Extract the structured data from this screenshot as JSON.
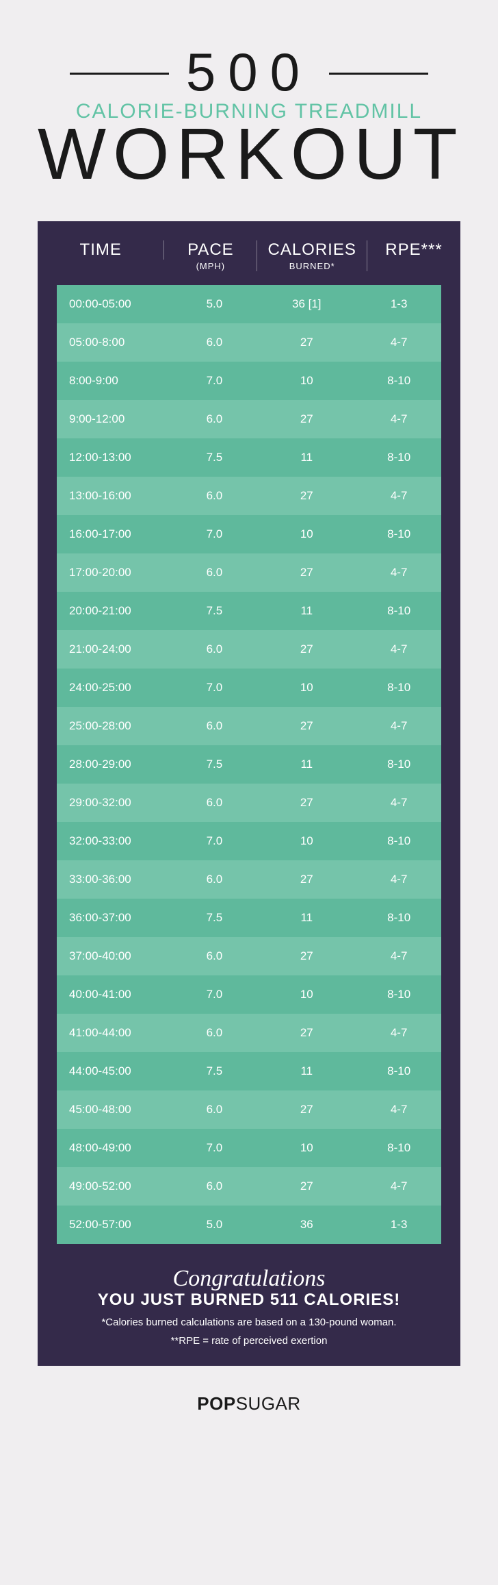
{
  "header": {
    "number": "500",
    "subtitle": "CALORIE-BURNING TREADMILL",
    "title": "WORKOUT"
  },
  "table": {
    "columns": [
      {
        "label": "TIME",
        "sub": ""
      },
      {
        "label": "PACE",
        "sub": "(MPH)"
      },
      {
        "label": "CALORIES",
        "sub": "BURNED*"
      },
      {
        "label": "RPE***",
        "sub": ""
      }
    ],
    "col_widths": [
      "30%",
      "22%",
      "26%",
      "22%"
    ],
    "row_colors": {
      "dark": "#5fb99c",
      "light": "#75c4aa"
    },
    "header_bg": "#342a4a",
    "rows": [
      {
        "time": "00:00-05:00",
        "pace": "5.0",
        "cal": "36 [1]",
        "rpe": "1-3"
      },
      {
        "time": "05:00-8:00",
        "pace": "6.0",
        "cal": "27",
        "rpe": "4-7"
      },
      {
        "time": "8:00-9:00",
        "pace": "7.0",
        "cal": "10",
        "rpe": "8-10"
      },
      {
        "time": "9:00-12:00",
        "pace": "6.0",
        "cal": "27",
        "rpe": "4-7"
      },
      {
        "time": "12:00-13:00",
        "pace": "7.5",
        "cal": "11",
        "rpe": "8-10"
      },
      {
        "time": "13:00-16:00",
        "pace": "6.0",
        "cal": "27",
        "rpe": "4-7"
      },
      {
        "time": "16:00-17:00",
        "pace": "7.0",
        "cal": "10",
        "rpe": "8-10"
      },
      {
        "time": "17:00-20:00",
        "pace": "6.0",
        "cal": "27",
        "rpe": "4-7"
      },
      {
        "time": "20:00-21:00",
        "pace": "7.5",
        "cal": "11",
        "rpe": "8-10"
      },
      {
        "time": "21:00-24:00",
        "pace": "6.0",
        "cal": "27",
        "rpe": "4-7"
      },
      {
        "time": "24:00-25:00",
        "pace": "7.0",
        "cal": "10",
        "rpe": "8-10"
      },
      {
        "time": "25:00-28:00",
        "pace": "6.0",
        "cal": "27",
        "rpe": "4-7"
      },
      {
        "time": "28:00-29:00",
        "pace": "7.5",
        "cal": "11",
        "rpe": "8-10"
      },
      {
        "time": "29:00-32:00",
        "pace": "6.0",
        "cal": "27",
        "rpe": "4-7"
      },
      {
        "time": "32:00-33:00",
        "pace": "7.0",
        "cal": "10",
        "rpe": "8-10"
      },
      {
        "time": "33:00-36:00",
        "pace": "6.0",
        "cal": "27",
        "rpe": "4-7"
      },
      {
        "time": "36:00-37:00",
        "pace": "7.5",
        "cal": "11",
        "rpe": "8-10"
      },
      {
        "time": "37:00-40:00",
        "pace": "6.0",
        "cal": "27",
        "rpe": "4-7"
      },
      {
        "time": "40:00-41:00",
        "pace": "7.0",
        "cal": "10",
        "rpe": "8-10"
      },
      {
        "time": "41:00-44:00",
        "pace": "6.0",
        "cal": "27",
        "rpe": "4-7"
      },
      {
        "time": "44:00-45:00",
        "pace": "7.5",
        "cal": "11",
        "rpe": "8-10"
      },
      {
        "time": "45:00-48:00",
        "pace": "6.0",
        "cal": "27",
        "rpe": "4-7"
      },
      {
        "time": "48:00-49:00",
        "pace": "7.0",
        "cal": "10",
        "rpe": "8-10"
      },
      {
        "time": "49:00-52:00",
        "pace": "6.0",
        "cal": "27",
        "rpe": "4-7"
      },
      {
        "time": "52:00-57:00",
        "pace": "5.0",
        "cal": "36",
        "rpe": "1-3"
      }
    ]
  },
  "footer": {
    "congrats": "Congratulations",
    "burned": "YOU JUST BURNED 511 CALORIES!",
    "note1": "*Calories burned calculations are based on a 130-pound woman.",
    "note2": "**RPE = rate of perceived exertion"
  },
  "logo": {
    "pop": "POP",
    "sugar": "SUGAR"
  },
  "colors": {
    "page_bg": "#f0eef0",
    "text_dark": "#1a1a1a",
    "accent": "#62c3a5",
    "text_light": "#ffffff"
  }
}
